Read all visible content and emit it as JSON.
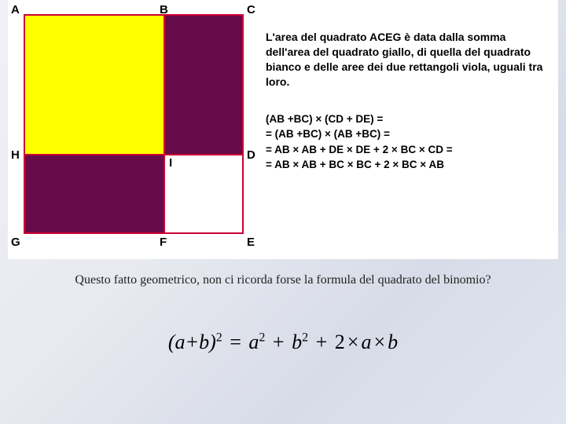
{
  "diagram": {
    "outer_size": 280,
    "split_ratio": 0.64,
    "colors": {
      "yellow": "#ffff00",
      "purple": "#660a4a",
      "white": "#ffffff",
      "border": "#cc0033"
    },
    "border_width": 2,
    "labels": {
      "A": "A",
      "B": "B",
      "C": "C",
      "D": "D",
      "E": "E",
      "F": "F",
      "G": "G",
      "H": "H",
      "I": "I"
    },
    "label_fontsize": 15
  },
  "description": "L'area del quadrato ACEG è data dalla somma dell'area del quadrato giallo, di quella del quadrato bianco e delle aree dei due rettangoli viola, uguali tra loro.",
  "equations": [
    "(AB +BC) × (CD + DE) =",
    "= (AB +BC) × (AB +BC) =",
    "= AB × AB + DE × DE + 2 × BC × CD =",
    "= AB × AB + BC × BC + 2 × BC × AB"
  ],
  "caption": "Questo fatto geometrico, non ci ricorda forse la formula del quadrato del binomio?",
  "formula": {
    "lhs_base": "(a+b)",
    "lhs_exp": "2",
    "r1_base": "a",
    "r1_exp": "2",
    "r2_base": "b",
    "r2_exp": "2",
    "r3": "2×a×b"
  }
}
